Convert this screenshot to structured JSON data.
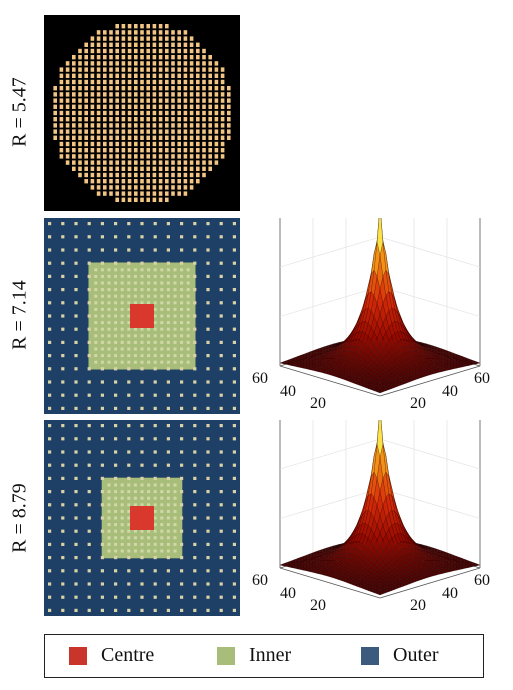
{
  "rows": [
    {
      "label": "R = 5.47",
      "kind": "circle"
    },
    {
      "label": "R = 7.14",
      "kind": "square",
      "inner_half": 7,
      "outer_half": 14,
      "surface": true
    },
    {
      "label": "R = 8.79",
      "kind": "square",
      "inner_half": 5,
      "outer_half": 14,
      "surface": true
    }
  ],
  "surface_ticks": {
    "left": [
      "60",
      "40",
      "20"
    ],
    "right": [
      "20",
      "40",
      "60"
    ]
  },
  "legend": {
    "items": [
      {
        "label": "Centre",
        "color": "#c9352b"
      },
      {
        "label": "Inner",
        "color": "#a9bd7a"
      },
      {
        "label": "Outer",
        "color": "#3c5a7e"
      }
    ]
  },
  "colors": {
    "background_black": "#000000",
    "circle_dot": "#f2c584",
    "outer_bg": "#1e3f66",
    "grid_dot": "#d9d2a6",
    "inner_fill": "#a9bd7a",
    "centre_fill": "#d9392c"
  }
}
